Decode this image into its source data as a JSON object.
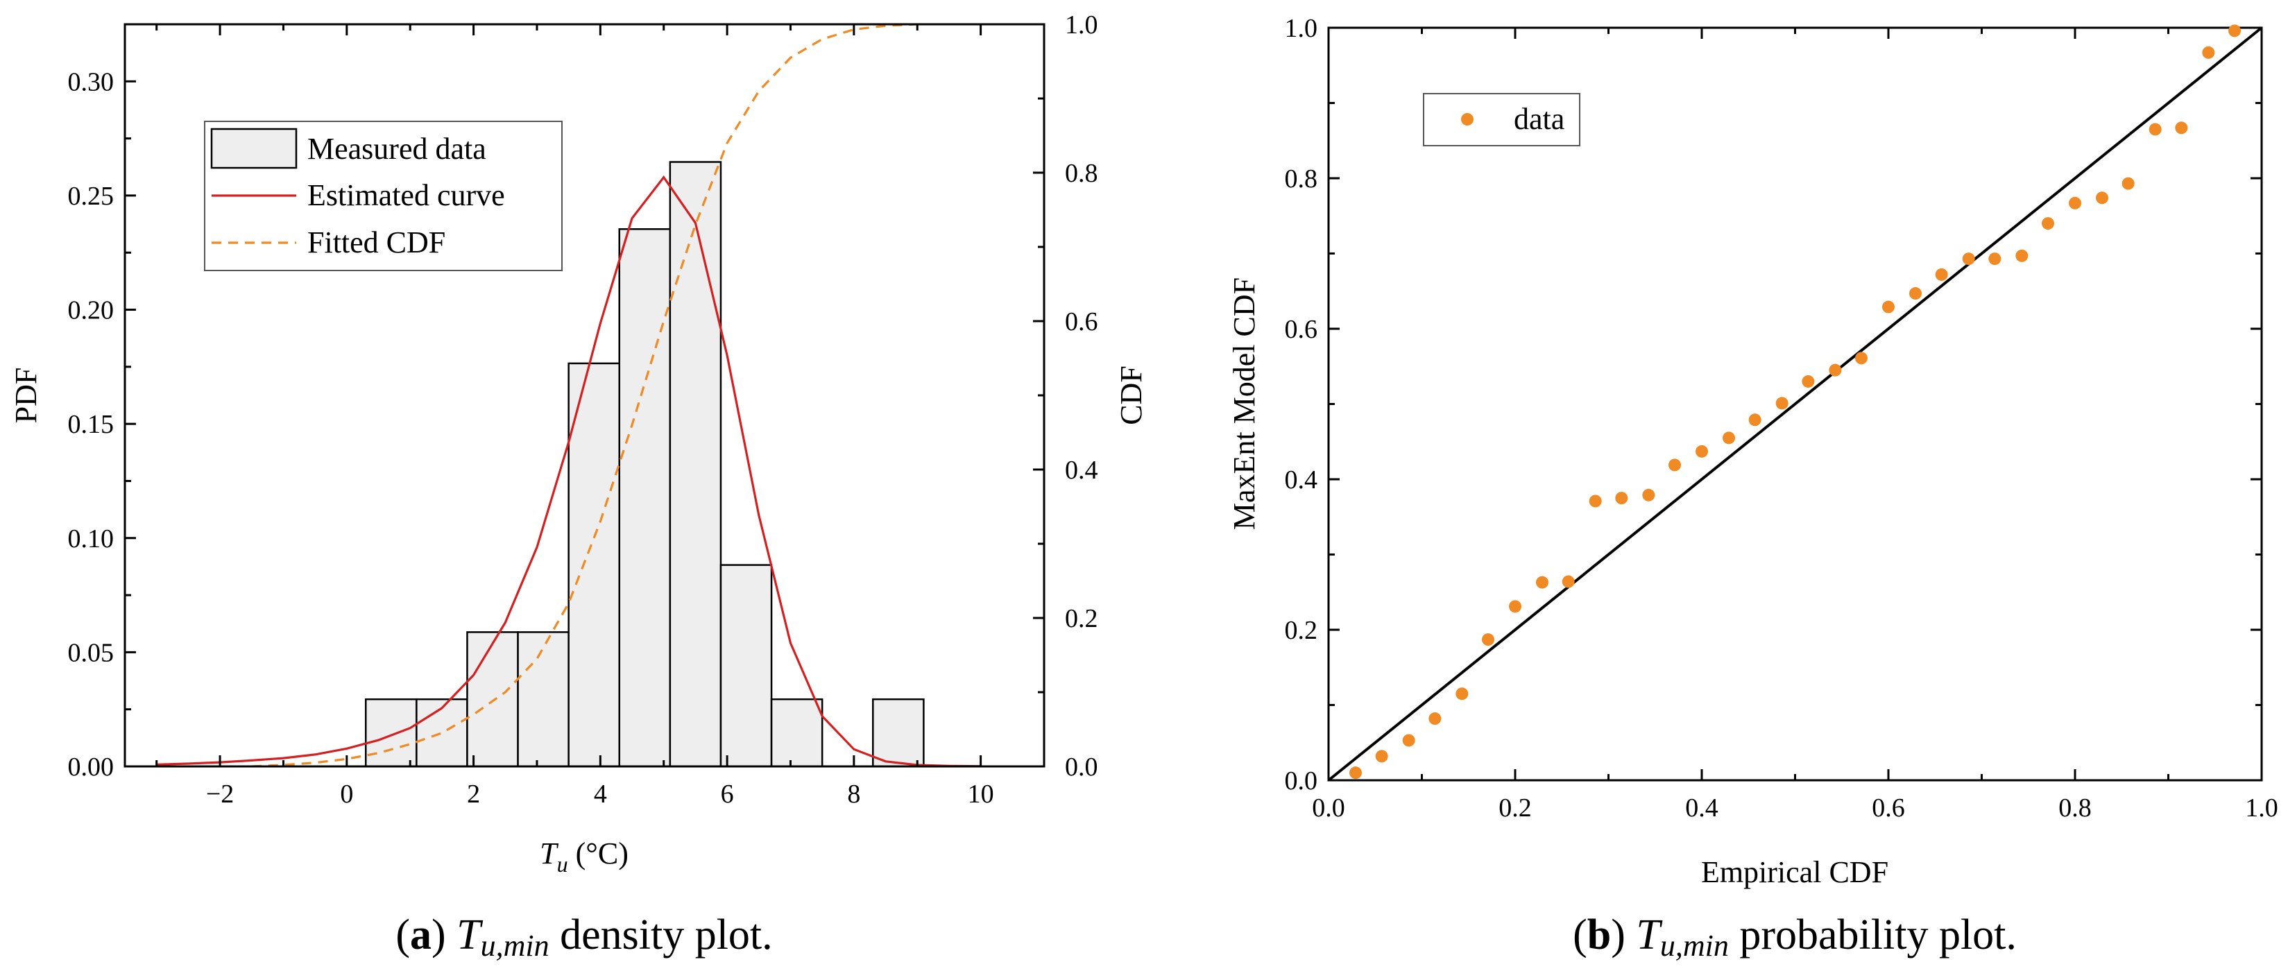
{
  "chart_data": [
    {
      "id": "a",
      "type": "histogram",
      "caption": {
        "letter": "a",
        "symbol": "T",
        "subscript": "u,min",
        "rest": " density plot."
      },
      "xlabel": {
        "symbol": "T",
        "subscript": "u",
        "unit": " (°C)"
      },
      "ylabel": "PDF",
      "y2label": "CDF",
      "xlim": [
        -3.5,
        11
      ],
      "ylim": [
        0,
        0.325
      ],
      "y2lim": [
        0,
        1
      ],
      "xticks": [
        -2,
        0,
        2,
        4,
        6,
        8,
        10
      ],
      "xtick_labels": [
        "−2",
        "0",
        "2",
        "4",
        "6",
        "8",
        "10"
      ],
      "yticks": [
        0,
        0.05,
        0.1,
        0.15,
        0.2,
        0.25,
        0.3
      ],
      "ytick_labels": [
        "0.00",
        "0.05",
        "0.10",
        "0.15",
        "0.20",
        "0.25",
        "0.30"
      ],
      "y2ticks": [
        0,
        0.2,
        0.4,
        0.6,
        0.8,
        1.0
      ],
      "y2tick_labels": [
        "0.0",
        "0.2",
        "0.4",
        "0.6",
        "0.8",
        "1.0"
      ],
      "bins": [
        {
          "x0": 0.3,
          "x1": 1.1,
          "value": 0.0294
        },
        {
          "x0": 1.1,
          "x1": 1.9,
          "value": 0.0294
        },
        {
          "x0": 1.9,
          "x1": 2.7,
          "value": 0.0588
        },
        {
          "x0": 2.7,
          "x1": 3.5,
          "value": 0.0588
        },
        {
          "x0": 3.5,
          "x1": 4.3,
          "value": 0.1765
        },
        {
          "x0": 4.3,
          "x1": 5.1,
          "value": 0.2353
        },
        {
          "x0": 5.1,
          "x1": 5.9,
          "value": 0.2647
        },
        {
          "x0": 5.9,
          "x1": 6.7,
          "value": 0.0882
        },
        {
          "x0": 6.7,
          "x1": 7.5,
          "value": 0.0294
        },
        {
          "x0": 8.3,
          "x1": 9.1,
          "value": 0.0294
        }
      ],
      "estimated_curve": {
        "x": [
          -3,
          -2.5,
          -2,
          -1.5,
          -1,
          -0.5,
          0,
          0.5,
          1,
          1.5,
          2,
          2.5,
          3,
          3.5,
          4,
          4.5,
          5,
          5.5,
          6,
          6.5,
          7,
          7.5,
          8,
          8.5,
          9,
          9.5,
          10
        ],
        "y": [
          0.0008,
          0.0012,
          0.0018,
          0.0026,
          0.0036,
          0.0052,
          0.0078,
          0.0115,
          0.0168,
          0.0255,
          0.04,
          0.063,
          0.096,
          0.142,
          0.194,
          0.24,
          0.258,
          0.238,
          0.18,
          0.11,
          0.054,
          0.022,
          0.0075,
          0.0022,
          0.0006,
          0.0002,
          0.0001
        ]
      },
      "fitted_cdf": {
        "x": [
          -1.5,
          -1,
          -0.5,
          0,
          0.5,
          1,
          1.5,
          2,
          2.5,
          3,
          3.5,
          4,
          4.5,
          5,
          5.5,
          6,
          6.5,
          7,
          7.5,
          8,
          8.5,
          9
        ],
        "y": [
          0.0,
          0.002,
          0.005,
          0.01,
          0.018,
          0.03,
          0.045,
          0.07,
          0.1,
          0.145,
          0.22,
          0.33,
          0.46,
          0.6,
          0.73,
          0.84,
          0.91,
          0.955,
          0.98,
          0.993,
          0.998,
          1.0
        ]
      },
      "legend": [
        "Measured data",
        "Estimated curve",
        "Fitted CDF"
      ],
      "colors": {
        "bar_fill": "#eeeeee",
        "curve": "#d42020",
        "cdf": "#f08a24"
      }
    },
    {
      "id": "b",
      "type": "scatter",
      "caption": {
        "letter": "b",
        "symbol": "T",
        "subscript": "u,min",
        "rest": " probability plot."
      },
      "xlabel": "Empirical CDF",
      "ylabel": "MaxEnt Model CDF",
      "xlim": [
        0,
        1
      ],
      "ylim": [
        0,
        1
      ],
      "xticks": [
        0,
        0.2,
        0.4,
        0.6,
        0.8,
        1.0
      ],
      "xtick_labels": [
        "0.0",
        "0.2",
        "0.4",
        "0.6",
        "0.8",
        "1.0"
      ],
      "yticks": [
        0,
        0.2,
        0.4,
        0.6,
        0.8,
        1.0
      ],
      "ytick_labels": [
        "0.0",
        "0.2",
        "0.4",
        "0.6",
        "0.8",
        "1.0"
      ],
      "reference_line": [
        [
          0,
          0
        ],
        [
          1,
          1
        ]
      ],
      "points": {
        "x": [
          0.029,
          0.057,
          0.086,
          0.114,
          0.143,
          0.171,
          0.2,
          0.229,
          0.257,
          0.286,
          0.314,
          0.343,
          0.371,
          0.4,
          0.429,
          0.457,
          0.486,
          0.514,
          0.543,
          0.571,
          0.6,
          0.629,
          0.657,
          0.686,
          0.714,
          0.743,
          0.771,
          0.8,
          0.829,
          0.857,
          0.886,
          0.914,
          0.943,
          0.971
        ],
        "y": [
          0.01,
          0.032,
          0.053,
          0.082,
          0.115,
          0.187,
          0.231,
          0.263,
          0.264,
          0.371,
          0.375,
          0.379,
          0.419,
          0.437,
          0.455,
          0.479,
          0.501,
          0.53,
          0.545,
          0.561,
          0.629,
          0.647,
          0.672,
          0.693,
          0.693,
          0.697,
          0.74,
          0.767,
          0.774,
          0.793,
          0.865,
          0.867,
          0.967,
          0.996
        ]
      },
      "legend": [
        "data"
      ],
      "colors": {
        "points": "#f08a24",
        "line": "#000000"
      }
    }
  ]
}
